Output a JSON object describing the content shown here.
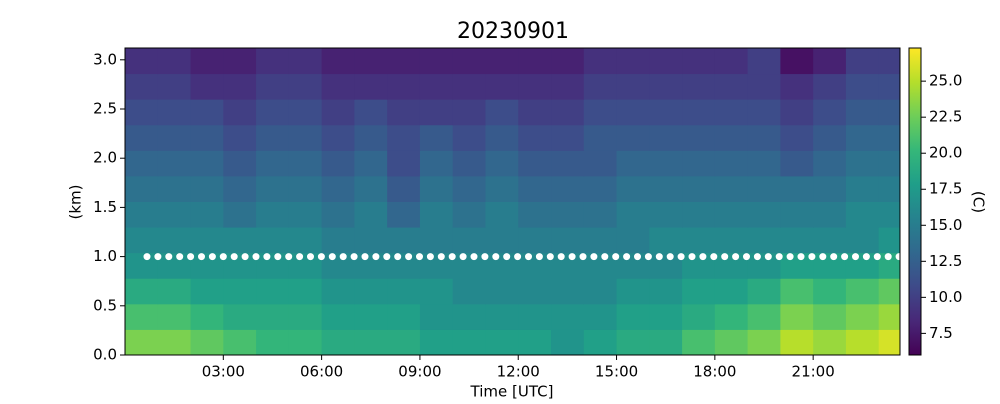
{
  "chart_data": {
    "type": "heatmap",
    "title": "20230901",
    "x_label": "Time [UTC]",
    "y_label": "(km)",
    "colorbar_label": "(C)",
    "colormap": "viridis",
    "x_edges": [
      0,
      1,
      2,
      3,
      4,
      5,
      6,
      7,
      8,
      9,
      10,
      11,
      12,
      13,
      14,
      15,
      16,
      17,
      18,
      19,
      20,
      21,
      22,
      23,
      23.65
    ],
    "y_edges": [
      0,
      0.26,
      0.52,
      0.78,
      1.04,
      1.3,
      1.56,
      1.82,
      2.08,
      2.34,
      2.6,
      2.86,
      3.12
    ],
    "z": [
      [
        23,
        23,
        22,
        21,
        20,
        20,
        19,
        19,
        19,
        18,
        18,
        18,
        18,
        17,
        18,
        19,
        19,
        21,
        22,
        23,
        25,
        24,
        25,
        26
      ],
      [
        21,
        21,
        20,
        19,
        19,
        19,
        18,
        18,
        18,
        17,
        17,
        17,
        17,
        17,
        17,
        18,
        18,
        19,
        20,
        21,
        23,
        22,
        23,
        24
      ],
      [
        19,
        19,
        18,
        18,
        18,
        18,
        17,
        17,
        17,
        17,
        16,
        16,
        16,
        16,
        16,
        17,
        17,
        18,
        18,
        19,
        21,
        20,
        21,
        22
      ],
      [
        17,
        17,
        17,
        17,
        17,
        17,
        16,
        16,
        16,
        16,
        16,
        16,
        16,
        16,
        16,
        16,
        16,
        17,
        17,
        17,
        18,
        18,
        18,
        19
      ],
      [
        16,
        16,
        16,
        16,
        16,
        16,
        15,
        15,
        15,
        15,
        15,
        15,
        15,
        15,
        15,
        15,
        16,
        16,
        16,
        16,
        16,
        16,
        16,
        17
      ],
      [
        15,
        15,
        15,
        14,
        15,
        15,
        14,
        15,
        13,
        15,
        14,
        15,
        14,
        14,
        14,
        15,
        15,
        15,
        15,
        15,
        15,
        15,
        16,
        16
      ],
      [
        14,
        14,
        14,
        13,
        14,
        14,
        13,
        14,
        12,
        14,
        13,
        14,
        13,
        13,
        13,
        14,
        14,
        14,
        14,
        14,
        14,
        14,
        15,
        15
      ],
      [
        13,
        13,
        13,
        12,
        13,
        13,
        12,
        13,
        11,
        13,
        12,
        13,
        12,
        12,
        12,
        13,
        13,
        13,
        13,
        13,
        12,
        13,
        14,
        14
      ],
      [
        12,
        12,
        12,
        11,
        12,
        12,
        11,
        12,
        11,
        12,
        11,
        12,
        11,
        11,
        12,
        12,
        12,
        12,
        12,
        12,
        11,
        12,
        13,
        13
      ],
      [
        11,
        11,
        11,
        10,
        11,
        11,
        10,
        11,
        10,
        10,
        10,
        11,
        10,
        10,
        11,
        11,
        11,
        11,
        11,
        11,
        10,
        11,
        12,
        12
      ],
      [
        10,
        10,
        9,
        9,
        10,
        10,
        9,
        9,
        9,
        9,
        9,
        9,
        9,
        9,
        10,
        10,
        10,
        10,
        10,
        10,
        9,
        10,
        11,
        11
      ],
      [
        9,
        9,
        8,
        8,
        9,
        9,
        8,
        8,
        8,
        8,
        8,
        8,
        8,
        8,
        9,
        9,
        9,
        9,
        9,
        10,
        7,
        8,
        10,
        10
      ]
    ],
    "xlim": [
      0,
      23.65
    ],
    "ylim": [
      0,
      3.12
    ],
    "clim": [
      6,
      27.3
    ],
    "xticks": [
      {
        "value": 3,
        "label": "03:00"
      },
      {
        "value": 6,
        "label": "06:00"
      },
      {
        "value": 9,
        "label": "09:00"
      },
      {
        "value": 12,
        "label": "12:00"
      },
      {
        "value": 15,
        "label": "15:00"
      },
      {
        "value": 18,
        "label": "18:00"
      },
      {
        "value": 21,
        "label": "21:00"
      }
    ],
    "yticks": [
      {
        "value": 0,
        "label": "0.0"
      },
      {
        "value": 0.5,
        "label": "0.5"
      },
      {
        "value": 1,
        "label": "1.0"
      },
      {
        "value": 1.5,
        "label": "1.5"
      },
      {
        "value": 2,
        "label": "2.0"
      },
      {
        "value": 2.5,
        "label": "2.5"
      },
      {
        "value": 3,
        "label": "3.0"
      }
    ],
    "cticks": [
      7.5,
      {
        "value": 10,
        "label": "10.0"
      },
      12.5,
      {
        "value": 15,
        "label": "15.0"
      },
      17.5,
      {
        "value": 20,
        "label": "20.0"
      },
      22.5,
      {
        "value": 25,
        "label": "25.0"
      }
    ],
    "hline": 1.0
  }
}
